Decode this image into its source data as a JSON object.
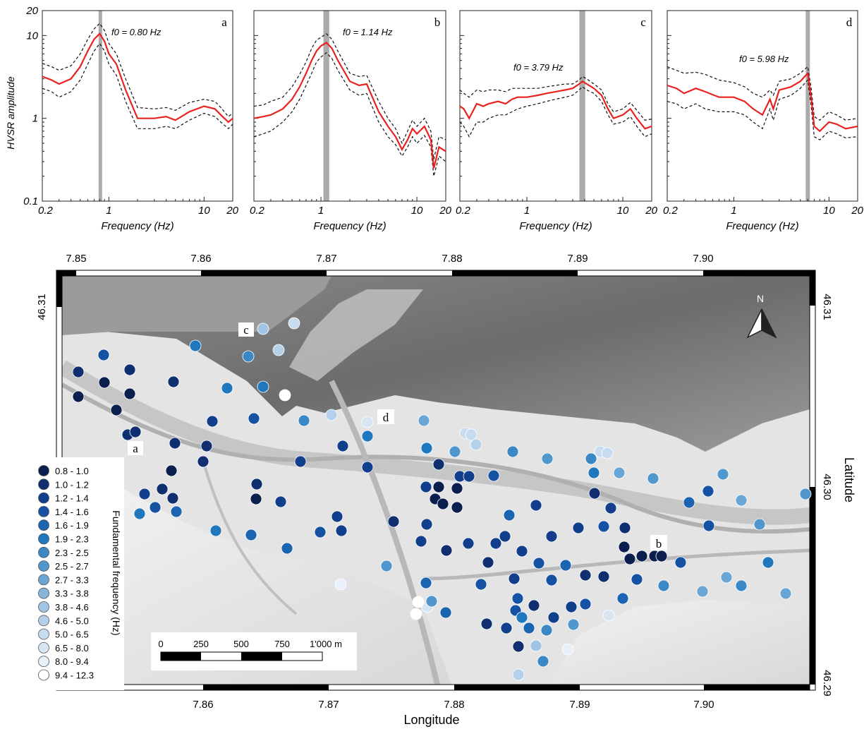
{
  "hvsr_panels": {
    "y_label": "HVSR amplitude",
    "x_label": "Frequency (Hz)",
    "x_ticks": [
      "0.2",
      "1",
      "10",
      "20"
    ],
    "y_ticks": [
      "20",
      "10",
      "1",
      "0.1"
    ]
  },
  "map": {
    "x_label": "Longitude",
    "y_label": "Latitude",
    "lon_ticks_top": [
      "7.85",
      "7.86",
      "7.87",
      "7.88",
      "7.89",
      "7.90"
    ],
    "lon_ticks_bottom": [
      "7.86",
      "7.87",
      "7.88",
      "7.89",
      "7.90"
    ],
    "lat_ticks_left": [
      "46.31"
    ],
    "lat_ticks_right": [
      "46.31",
      "46.30",
      "46.29"
    ],
    "north_label": "N",
    "scale_bar": {
      "labels": [
        "0",
        "250",
        "500",
        "750",
        "1'000 m"
      ]
    },
    "site_labels": [
      "a",
      "b",
      "c",
      "d"
    ],
    "legend": {
      "title": "Fundamental frequency (Hz)",
      "entries": [
        {
          "label": "0.8 - 1.0",
          "color": "#0b1f4f"
        },
        {
          "label": "1.0 - 1.2",
          "color": "#0f2f70"
        },
        {
          "label": "1.2 - 1.4",
          "color": "#123f8c"
        },
        {
          "label": "1.4 - 1.6",
          "color": "#1652a3"
        },
        {
          "label": "1.6 - 1.9",
          "color": "#1a64b2"
        },
        {
          "label": "1.9 - 2.3",
          "color": "#1f77bd"
        },
        {
          "label": "2.3 - 2.5",
          "color": "#3a88c6"
        },
        {
          "label": "2.5 - 2.7",
          "color": "#4f97cd"
        },
        {
          "label": "2.7 - 3.3",
          "color": "#6aa6d5"
        },
        {
          "label": "3.3 - 3.8",
          "color": "#86b6dc"
        },
        {
          "label": "3.8 - 4.6",
          "color": "#a0c4e3"
        },
        {
          "label": "4.6 - 5.0",
          "color": "#b5d1e9"
        },
        {
          "label": "5.0 - 6.5",
          "color": "#c7dcef"
        },
        {
          "label": "6.5 - 8.0",
          "color": "#d8e6f4"
        },
        {
          "label": "8.0 - 9.4",
          "color": "#e8f0f9"
        },
        {
          "label": "9.4 - 12.3",
          "color": "#ffffff"
        }
      ]
    }
  },
  "chart_data": [
    {
      "type": "line",
      "panel": "a",
      "annotation": "f0 = 0.80 Hz",
      "xscale": "log",
      "yscale": "log",
      "xlim": [
        0.2,
        20
      ],
      "ylim": [
        0.1,
        20
      ],
      "x": [
        0.2,
        0.25,
        0.3,
        0.4,
        0.5,
        0.6,
        0.7,
        0.8,
        0.9,
        1.0,
        1.2,
        1.5,
        2,
        3,
        4,
        5,
        7,
        10,
        13,
        15,
        18,
        20
      ],
      "mean": [
        3.2,
        2.9,
        2.6,
        3.0,
        4.2,
        6.5,
        9.0,
        10.5,
        8.5,
        6.0,
        4.5,
        2.2,
        1.0,
        1.0,
        1.05,
        0.95,
        1.2,
        1.4,
        1.3,
        1.1,
        0.9,
        1.0
      ],
      "upper": [
        4.6,
        4.2,
        3.8,
        4.3,
        6.0,
        9.0,
        12.0,
        14.0,
        11.5,
        8.0,
        6.0,
        3.0,
        1.35,
        1.3,
        1.35,
        1.25,
        1.55,
        1.7,
        1.6,
        1.35,
        1.05,
        1.15
      ],
      "lower": [
        2.3,
        2.1,
        1.8,
        2.1,
        2.9,
        4.5,
        6.5,
        8.0,
        6.5,
        4.5,
        3.3,
        1.6,
        0.75,
        0.75,
        0.8,
        0.75,
        0.95,
        1.15,
        1.05,
        0.9,
        0.75,
        0.85
      ],
      "f0_band": [
        0.78,
        0.85
      ]
    },
    {
      "type": "line",
      "panel": "b",
      "annotation": "f0 = 1.14 Hz",
      "xscale": "log",
      "yscale": "log",
      "xlim": [
        0.2,
        20
      ],
      "ylim": [
        0.1,
        20
      ],
      "x": [
        0.2,
        0.25,
        0.3,
        0.4,
        0.5,
        0.6,
        0.7,
        0.8,
        0.9,
        1.0,
        1.14,
        1.3,
        1.5,
        2,
        2.5,
        3,
        4,
        5,
        6,
        7,
        8,
        9,
        10,
        12,
        14,
        15,
        17,
        20
      ],
      "mean": [
        1.0,
        1.05,
        1.1,
        1.3,
        1.7,
        2.4,
        3.5,
        5.0,
        6.5,
        7.5,
        8.2,
        7.0,
        5.0,
        2.8,
        2.5,
        2.6,
        1.2,
        0.8,
        0.6,
        0.42,
        0.55,
        0.75,
        0.65,
        0.8,
        0.55,
        0.25,
        0.45,
        0.4
      ],
      "upper": [
        1.4,
        1.45,
        1.6,
        1.8,
        2.4,
        3.4,
        4.8,
        7.0,
        8.8,
        9.5,
        10.5,
        9.0,
        6.5,
        3.5,
        3.2,
        3.3,
        1.6,
        1.0,
        0.75,
        0.5,
        0.7,
        0.95,
        0.8,
        1.0,
        0.7,
        0.32,
        0.6,
        0.55
      ],
      "lower": [
        0.6,
        0.65,
        0.7,
        0.9,
        1.2,
        1.7,
        2.5,
        3.5,
        4.8,
        5.5,
        6.2,
        5.3,
        3.8,
        2.2,
        1.9,
        2.0,
        0.9,
        0.6,
        0.48,
        0.35,
        0.45,
        0.6,
        0.5,
        0.62,
        0.45,
        0.2,
        0.35,
        0.3
      ]
    },
    {
      "type": "line",
      "panel": "c",
      "annotation": "f0 = 3.79 Hz",
      "xscale": "log",
      "yscale": "log",
      "xlim": [
        0.2,
        20
      ],
      "ylim": [
        0.1,
        20
      ],
      "x": [
        0.2,
        0.22,
        0.25,
        0.3,
        0.35,
        0.4,
        0.5,
        0.6,
        0.7,
        0.8,
        1.0,
        1.3,
        1.6,
        2,
        2.5,
        3,
        3.5,
        3.79,
        4.2,
        5,
        6,
        7,
        8,
        10,
        12,
        14,
        17,
        20
      ],
      "mean": [
        1.4,
        1.3,
        1.0,
        1.5,
        1.4,
        1.5,
        1.6,
        1.5,
        1.7,
        1.8,
        1.8,
        1.9,
        2.0,
        2.1,
        2.2,
        2.3,
        2.6,
        2.8,
        2.6,
        2.3,
        1.9,
        1.3,
        1.0,
        1.1,
        1.3,
        1.0,
        0.75,
        0.8
      ],
      "upper": [
        2.2,
        2.0,
        1.8,
        2.2,
        2.1,
        2.2,
        2.2,
        2.1,
        2.3,
        2.3,
        2.3,
        2.3,
        2.4,
        2.5,
        2.6,
        2.6,
        2.9,
        3.2,
        3.0,
        2.6,
        2.2,
        1.5,
        1.2,
        1.3,
        1.55,
        1.25,
        0.95,
        0.98
      ],
      "lower": [
        0.9,
        0.8,
        0.6,
        0.9,
        0.9,
        1.0,
        1.1,
        1.1,
        1.2,
        1.3,
        1.4,
        1.5,
        1.6,
        1.7,
        1.8,
        1.9,
        2.2,
        2.4,
        2.2,
        2.0,
        1.6,
        1.1,
        0.85,
        0.9,
        1.05,
        0.8,
        0.6,
        0.65
      ]
    },
    {
      "type": "line",
      "panel": "d",
      "annotation": "f0 = 5.98 Hz",
      "xscale": "log",
      "yscale": "log",
      "xlim": [
        0.2,
        20
      ],
      "ylim": [
        0.1,
        20
      ],
      "x": [
        0.2,
        0.25,
        0.3,
        0.4,
        0.5,
        0.7,
        1.0,
        1.3,
        1.6,
        2,
        2.4,
        2.6,
        3,
        3.5,
        4,
        5,
        5.98,
        6.5,
        7,
        8,
        10,
        12,
        15,
        20
      ],
      "mean": [
        2.5,
        2.3,
        2.0,
        2.3,
        2.1,
        1.8,
        1.8,
        1.6,
        1.3,
        1.1,
        1.7,
        1.3,
        2.2,
        2.3,
        2.4,
        2.8,
        3.5,
        1.8,
        0.8,
        0.7,
        0.9,
        0.85,
        0.75,
        0.8
      ],
      "upper": [
        4.2,
        3.8,
        3.5,
        3.6,
        3.4,
        2.9,
        2.7,
        2.4,
        2.0,
        1.8,
        2.2,
        1.9,
        2.8,
        2.9,
        3.0,
        3.5,
        4.2,
        2.3,
        1.05,
        0.95,
        1.2,
        1.1,
        0.95,
        1.0
      ],
      "lower": [
        1.6,
        1.5,
        1.3,
        1.5,
        1.3,
        1.2,
        1.2,
        1.1,
        0.9,
        0.75,
        1.3,
        0.95,
        1.7,
        1.8,
        1.9,
        2.3,
        2.9,
        1.4,
        0.6,
        0.55,
        0.7,
        0.65,
        0.58,
        0.6
      ],
      "f0_band": [
        5.7,
        6.3
      ]
    }
  ]
}
